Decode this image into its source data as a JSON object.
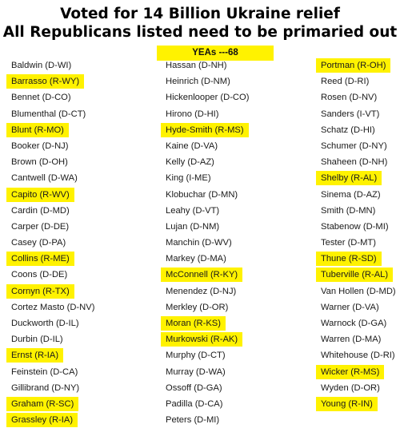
{
  "header": {
    "title_line1": "Voted for 14 Billion Ukraine relief",
    "title_line2": "All Republicans listed need to be primaried out",
    "yeas_label": "YEAs ---68"
  },
  "columns": [
    [
      {
        "name": "Baldwin (D-WI)",
        "highlight": false
      },
      {
        "name": "Barrasso (R-WY)",
        "highlight": true
      },
      {
        "name": "Bennet (D-CO)",
        "highlight": false
      },
      {
        "name": "Blumenthal (D-CT)",
        "highlight": false
      },
      {
        "name": "Blunt (R-MO)",
        "highlight": true
      },
      {
        "name": "Booker (D-NJ)",
        "highlight": false
      },
      {
        "name": "Brown (D-OH)",
        "highlight": false
      },
      {
        "name": "Cantwell (D-WA)",
        "highlight": false
      },
      {
        "name": "Capito (R-WV)",
        "highlight": true
      },
      {
        "name": "Cardin (D-MD)",
        "highlight": false
      },
      {
        "name": "Carper (D-DE)",
        "highlight": false
      },
      {
        "name": "Casey (D-PA)",
        "highlight": false
      },
      {
        "name": "Collins (R-ME)",
        "highlight": true
      },
      {
        "name": "Coons (D-DE)",
        "highlight": false
      },
      {
        "name": "Cornyn (R-TX)",
        "highlight": true
      },
      {
        "name": "Cortez Masto (D-NV)",
        "highlight": false
      },
      {
        "name": "Duckworth (D-IL)",
        "highlight": false
      },
      {
        "name": "Durbin (D-IL)",
        "highlight": false
      },
      {
        "name": "Ernst (R-IA)",
        "highlight": true
      },
      {
        "name": "Feinstein (D-CA)",
        "highlight": false
      },
      {
        "name": "Gillibrand (D-NY)",
        "highlight": false
      },
      {
        "name": "Graham (R-SC)",
        "highlight": true
      },
      {
        "name": "Grassley (R-IA)",
        "highlight": true
      }
    ],
    [
      {
        "name": "Hassan (D-NH)",
        "highlight": false
      },
      {
        "name": "Heinrich (D-NM)",
        "highlight": false
      },
      {
        "name": "Hickenlooper (D-CO)",
        "highlight": false
      },
      {
        "name": "Hirono (D-HI)",
        "highlight": false
      },
      {
        "name": "Hyde-Smith (R-MS)",
        "highlight": true
      },
      {
        "name": "Kaine (D-VA)",
        "highlight": false
      },
      {
        "name": "Kelly (D-AZ)",
        "highlight": false
      },
      {
        "name": "King (I-ME)",
        "highlight": false
      },
      {
        "name": "Klobuchar (D-MN)",
        "highlight": false
      },
      {
        "name": "Leahy (D-VT)",
        "highlight": false
      },
      {
        "name": "Lujan (D-NM)",
        "highlight": false
      },
      {
        "name": "Manchin (D-WV)",
        "highlight": false
      },
      {
        "name": "Markey (D-MA)",
        "highlight": false
      },
      {
        "name": "McConnell (R-KY)",
        "highlight": true
      },
      {
        "name": "Menendez (D-NJ)",
        "highlight": false
      },
      {
        "name": "Merkley (D-OR)",
        "highlight": false
      },
      {
        "name": "Moran (R-KS)",
        "highlight": true
      },
      {
        "name": "Murkowski (R-AK)",
        "highlight": true
      },
      {
        "name": "Murphy (D-CT)",
        "highlight": false
      },
      {
        "name": "Murray (D-WA)",
        "highlight": false
      },
      {
        "name": "Ossoff (D-GA)",
        "highlight": false
      },
      {
        "name": "Padilla (D-CA)",
        "highlight": false
      },
      {
        "name": "Peters (D-MI)",
        "highlight": false
      }
    ],
    [
      {
        "name": "Portman (R-OH)",
        "highlight": true
      },
      {
        "name": "Reed (D-RI)",
        "highlight": false
      },
      {
        "name": "Rosen (D-NV)",
        "highlight": false
      },
      {
        "name": "Sanders (I-VT)",
        "highlight": false
      },
      {
        "name": "Schatz (D-HI)",
        "highlight": false
      },
      {
        "name": "Schumer (D-NY)",
        "highlight": false
      },
      {
        "name": "Shaheen (D-NH)",
        "highlight": false
      },
      {
        "name": "Shelby (R-AL)",
        "highlight": true
      },
      {
        "name": "Sinema (D-AZ)",
        "highlight": false
      },
      {
        "name": "Smith (D-MN)",
        "highlight": false
      },
      {
        "name": "Stabenow (D-MI)",
        "highlight": false
      },
      {
        "name": "Tester (D-MT)",
        "highlight": false
      },
      {
        "name": "Thune (R-SD)",
        "highlight": true
      },
      {
        "name": "Tuberville (R-AL)",
        "highlight": true
      },
      {
        "name": "Van Hollen (D-MD)",
        "highlight": false
      },
      {
        "name": "Warner (D-VA)",
        "highlight": false
      },
      {
        "name": "Warnock (D-GA)",
        "highlight": false
      },
      {
        "name": "Warren (D-MA)",
        "highlight": false
      },
      {
        "name": "Whitehouse (D-RI)",
        "highlight": false
      },
      {
        "name": "Wicker (R-MS)",
        "highlight": true
      },
      {
        "name": "Wyden (D-OR)",
        "highlight": false
      },
      {
        "name": "Young (R-IN)",
        "highlight": true
      }
    ]
  ],
  "colors": {
    "highlight": "#fff200",
    "text": "#1a1a1a",
    "background": "#ffffff"
  }
}
